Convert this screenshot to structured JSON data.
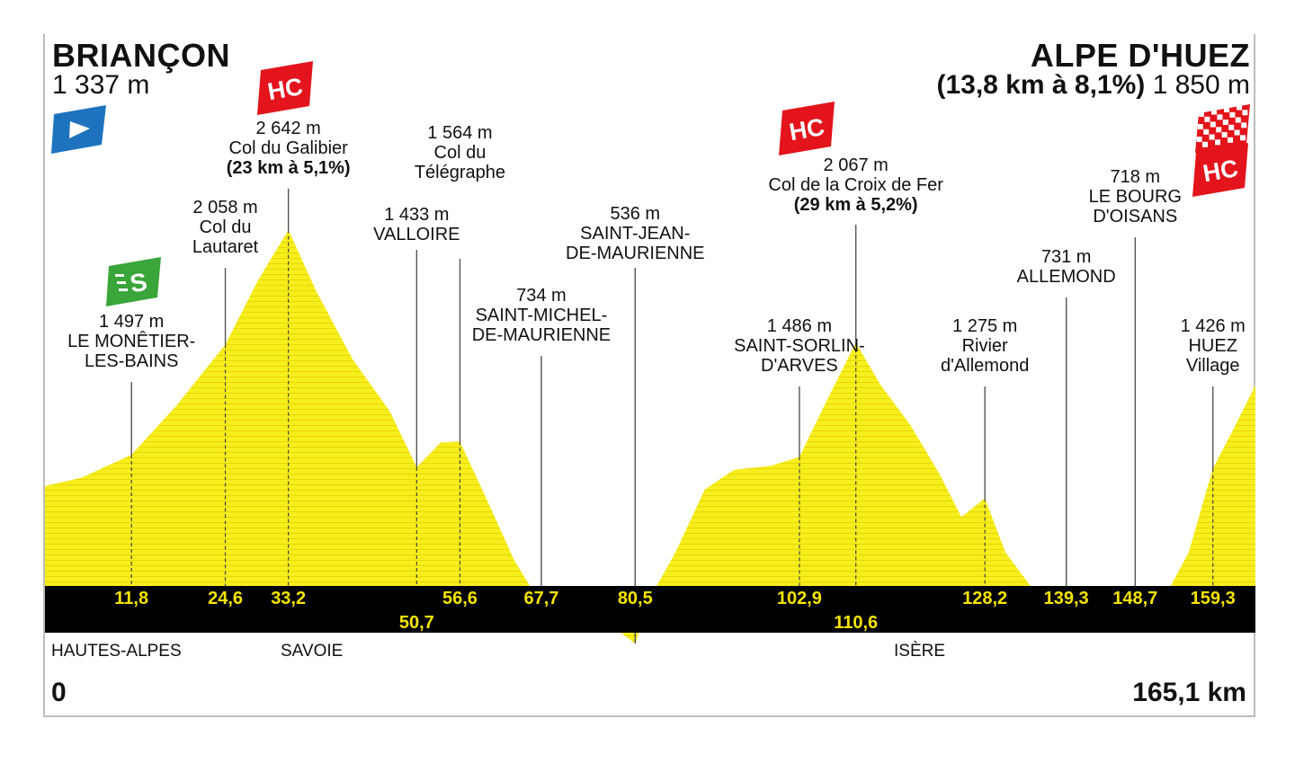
{
  "start": {
    "name": "BRIANÇON",
    "altitude": "1 337 m"
  },
  "finish": {
    "name": "ALPE D'HUEZ",
    "climb": "(13,8 km à 8,1%)",
    "altitude": "1 850 m"
  },
  "start_km": "0",
  "total_km": "165,1 km",
  "colors": {
    "profile": "#f7ee1e",
    "hc_badge": "#e3141b",
    "sprint_badge": "#3aa53a",
    "start_flag": "#1e73be",
    "strip": "#000000",
    "km_text": "#f5e400"
  },
  "icons": {
    "start": "start-flag-icon",
    "sprint": "intermediate-sprint-icon",
    "hc": "hc-climb-icon",
    "finish": "finish-checkered-flag-icon"
  },
  "badges": {
    "hc": "HC",
    "sprint": "S"
  },
  "regions": [
    "HAUTES-ALPES",
    "SAVOIE",
    "ISÈRE"
  ],
  "chart_data": {
    "type": "area",
    "xlabel": "",
    "ylabel": "",
    "xlim": [
      0,
      165.1
    ],
    "ylim": [
      0,
      2700
    ],
    "profile": {
      "x": [
        0,
        5,
        11.8,
        18,
        24.6,
        29,
        33.2,
        37,
        42,
        47,
        50.7,
        54,
        56.6,
        60,
        64,
        67.7,
        72,
        76,
        80.5,
        83,
        86,
        90,
        94,
        99,
        102.9,
        107,
        110.6,
        114,
        118,
        122,
        125,
        128.2,
        131,
        135,
        139.3,
        144,
        148.7,
        152,
        156,
        159.3,
        162,
        165.1
      ],
      "y": [
        1337,
        1380,
        1497,
        1750,
        2058,
        2380,
        2642,
        2330,
        1980,
        1720,
        1433,
        1560,
        1564,
        1290,
        960,
        734,
        720,
        660,
        536,
        800,
        1000,
        1320,
        1420,
        1440,
        1486,
        1800,
        2067,
        1850,
        1650,
        1400,
        1180,
        1275,
        1000,
        800,
        731,
        722,
        718,
        722,
        1000,
        1426,
        1620,
        1850
      ]
    },
    "points": [
      {
        "km": "11,8",
        "x": 11.8,
        "altitude": "1 497 m",
        "name": [
          "LE MONÊTIER-",
          "LES-BAINS"
        ],
        "badge": "sprint"
      },
      {
        "km": "24,6",
        "x": 24.6,
        "altitude": "2 058 m",
        "name": [
          "Col du",
          "Lautaret"
        ]
      },
      {
        "km": "33,2",
        "x": 33.2,
        "altitude": "2 642 m",
        "name": [
          "Col du Galibier"
        ],
        "climb": "(23 km à 5,1%)",
        "badge": "hc"
      },
      {
        "km": "50,7",
        "x": 50.7,
        "altitude": "1 433 m",
        "name": [
          "VALLOIRE"
        ]
      },
      {
        "km": "56,6",
        "x": 56.6,
        "altitude": "1 564 m",
        "name": [
          "Col du",
          "Télégraphe"
        ]
      },
      {
        "km": "67,7",
        "x": 67.7,
        "altitude": "734 m",
        "name": [
          "SAINT-MICHEL-",
          "DE-MAURIENNE"
        ]
      },
      {
        "km": "80,5",
        "x": 80.5,
        "altitude": "536 m",
        "name": [
          "SAINT-JEAN-",
          "DE-MAURIENNE"
        ]
      },
      {
        "km": "102,9",
        "x": 102.9,
        "altitude": "1 486 m",
        "name": [
          "SAINT-SORLIN-",
          "D'ARVES"
        ]
      },
      {
        "km": "110,6",
        "x": 110.6,
        "altitude": "2 067 m",
        "name": [
          "Col de la Croix de Fer"
        ],
        "climb": "(29 km à 5,2%)",
        "badge": "hc"
      },
      {
        "km": "128,2",
        "x": 128.2,
        "altitude": "1 275 m",
        "name": [
          "Rivier",
          "d'Allemond"
        ]
      },
      {
        "km": "139,3",
        "x": 139.3,
        "altitude": "731 m",
        "name": [
          "ALLEMOND"
        ]
      },
      {
        "km": "148,7",
        "x": 148.7,
        "altitude": "718 m",
        "name": [
          "LE BOURG",
          "D'OISANS"
        ]
      },
      {
        "km": "159,3",
        "x": 159.3,
        "altitude": "1 426 m",
        "name": [
          "HUEZ",
          "Village"
        ]
      }
    ]
  }
}
